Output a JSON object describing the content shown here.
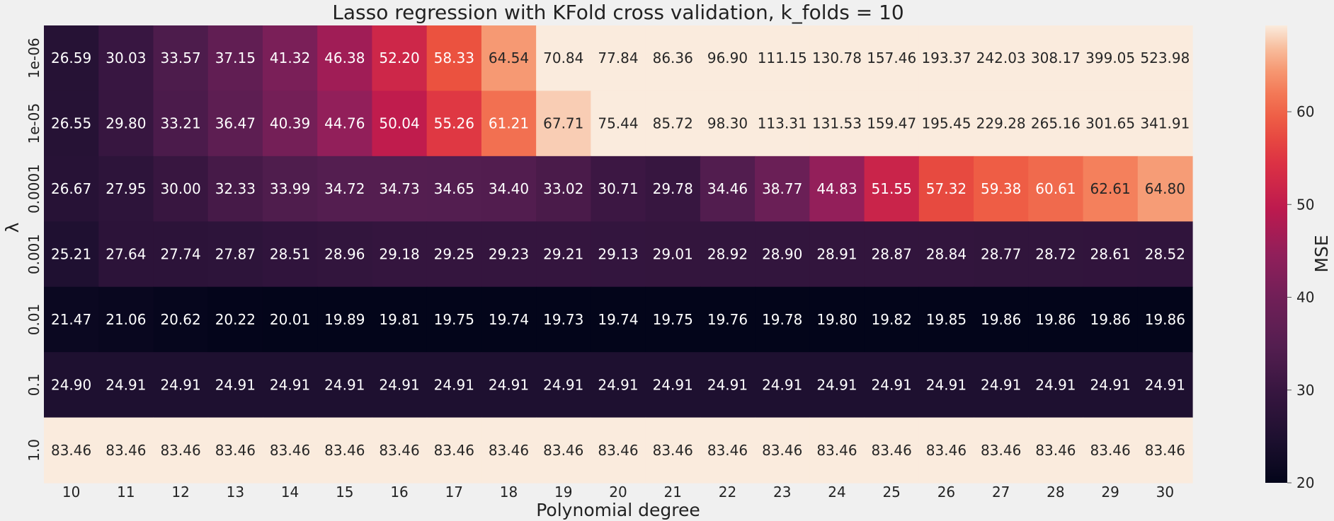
{
  "chart_data": {
    "type": "heatmap",
    "title": "Lasso regression with KFold cross validation, k_folds = 10",
    "xlabel": "Polynomial degree",
    "ylabel": "λ",
    "colorbar_label": "MSE",
    "colormap": "rocket",
    "vmin": 20,
    "vmax": 69.3,
    "colorbar_ticks": [
      "20",
      "30",
      "40",
      "50",
      "60"
    ],
    "x": [
      "10",
      "11",
      "12",
      "13",
      "14",
      "15",
      "16",
      "17",
      "18",
      "19",
      "20",
      "21",
      "22",
      "23",
      "24",
      "25",
      "26",
      "27",
      "28",
      "29",
      "30"
    ],
    "y": [
      "1e-06",
      "1e-05",
      "0.0001",
      "0.001",
      "0.01",
      "0.1",
      "1.0"
    ],
    "values": [
      [
        26.59,
        30.03,
        33.57,
        37.15,
        41.32,
        46.38,
        52.2,
        58.33,
        64.54,
        70.84,
        77.84,
        86.36,
        96.9,
        111.15,
        130.78,
        157.46,
        193.37,
        242.03,
        308.17,
        399.05,
        523.98
      ],
      [
        26.55,
        29.8,
        33.21,
        36.47,
        40.39,
        44.76,
        50.04,
        55.26,
        61.21,
        67.71,
        75.44,
        85.72,
        98.3,
        113.31,
        131.53,
        159.47,
        195.45,
        229.28,
        265.16,
        301.65,
        341.91
      ],
      [
        26.67,
        27.95,
        30.0,
        32.33,
        33.99,
        34.72,
        34.73,
        34.65,
        34.4,
        33.02,
        30.71,
        29.78,
        34.46,
        38.77,
        44.83,
        51.55,
        57.32,
        59.38,
        60.61,
        62.61,
        64.8
      ],
      [
        25.21,
        27.64,
        27.74,
        27.87,
        28.51,
        28.96,
        29.18,
        29.25,
        29.23,
        29.21,
        29.13,
        29.01,
        28.92,
        28.9,
        28.91,
        28.87,
        28.84,
        28.77,
        28.72,
        28.61,
        28.52
      ],
      [
        21.47,
        21.06,
        20.62,
        20.22,
        20.01,
        19.89,
        19.81,
        19.75,
        19.74,
        19.73,
        19.74,
        19.75,
        19.76,
        19.78,
        19.8,
        19.82,
        19.85,
        19.86,
        19.86,
        19.86,
        19.86
      ],
      [
        24.9,
        24.91,
        24.91,
        24.91,
        24.91,
        24.91,
        24.91,
        24.91,
        24.91,
        24.91,
        24.91,
        24.91,
        24.91,
        24.91,
        24.91,
        24.91,
        24.91,
        24.91,
        24.91,
        24.91,
        24.91
      ],
      [
        83.46,
        83.46,
        83.46,
        83.46,
        83.46,
        83.46,
        83.46,
        83.46,
        83.46,
        83.46,
        83.46,
        83.46,
        83.46,
        83.46,
        83.46,
        83.46,
        83.46,
        83.46,
        83.46,
        83.46,
        83.46
      ]
    ]
  }
}
